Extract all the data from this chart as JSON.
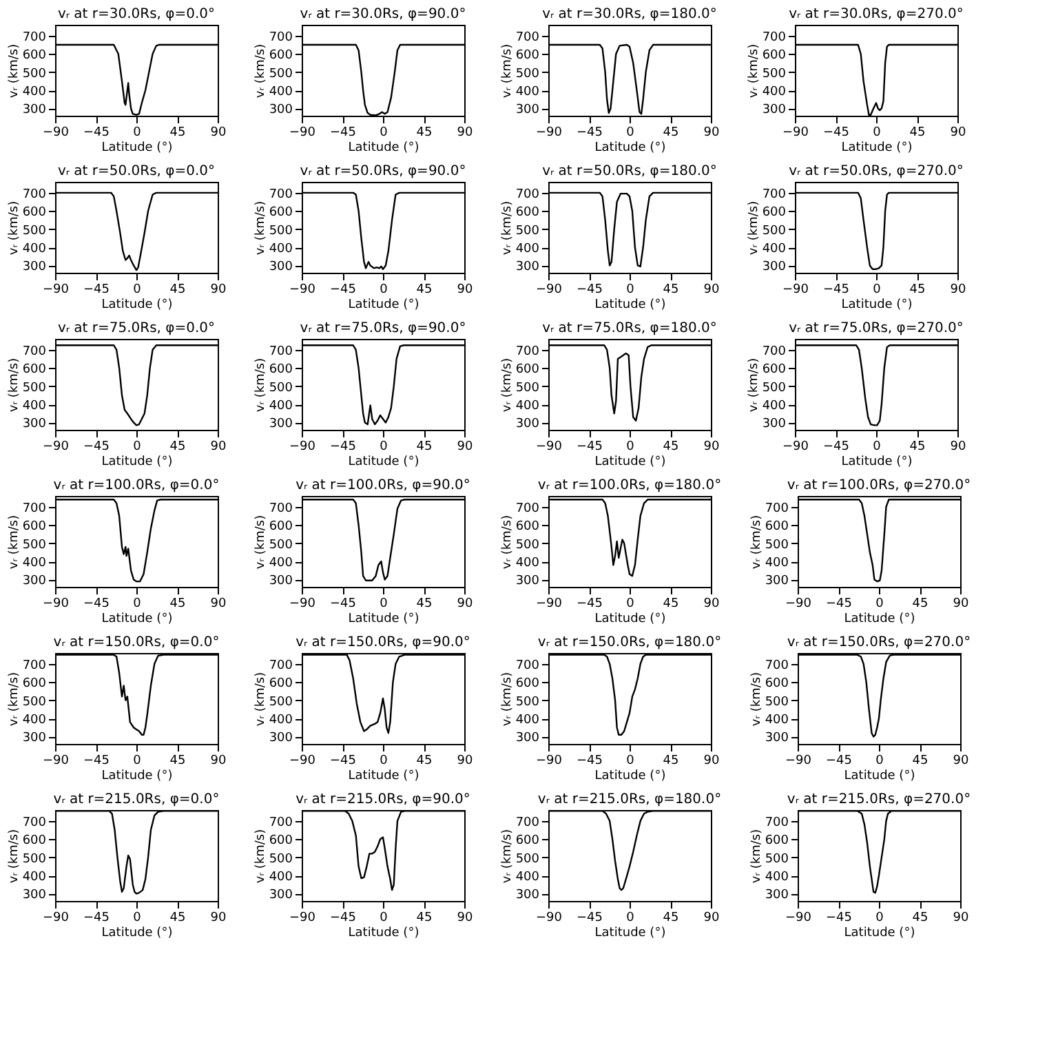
{
  "chart_data": [
    {
      "type": "line",
      "title": "vᵣ at r=30.0Rs, φ=0.0°",
      "xlabel": "Latitude (°)",
      "ylabel": "vᵣ (km/s)",
      "xlim": [
        -90,
        90
      ],
      "ylim": [
        260,
        760
      ],
      "xticks": [
        -90,
        -45,
        0,
        45,
        90
      ],
      "yticks": [
        300,
        400,
        500,
        600,
        700
      ],
      "x": [
        -90,
        -25,
        -20,
        -16,
        -13,
        -12,
        -10,
        -9,
        -8,
        -6,
        -4,
        0,
        3,
        6,
        10,
        14,
        18,
        22,
        25,
        90
      ],
      "series": [
        {
          "color": "#000000",
          "values": [
            650,
            650,
            600,
            450,
            330,
            320,
            400,
            440,
            380,
            300,
            270,
            265,
            270,
            330,
            400,
            500,
            600,
            645,
            650,
            650
          ]
        }
      ]
    },
    {
      "type": "line",
      "title": "vᵣ at r=30.0Rs, φ=90.0°",
      "xlabel": "Latitude (°)",
      "ylabel": "vᵣ (km/s)",
      "xlim": [
        -90,
        90
      ],
      "ylim": [
        260,
        760
      ],
      "xticks": [
        -90,
        -45,
        0,
        45,
        90
      ],
      "yticks": [
        300,
        400,
        500,
        600,
        700
      ],
      "x": [
        -90,
        -30,
        -27,
        -24,
        -22,
        -20,
        -17,
        -14,
        -8,
        -4,
        -1,
        2,
        5,
        9,
        13,
        16,
        19,
        90
      ],
      "series": [
        {
          "color": "#000000",
          "values": [
            650,
            650,
            620,
            500,
            400,
            320,
            275,
            265,
            262,
            270,
            280,
            270,
            280,
            360,
            500,
            620,
            650,
            650
          ]
        }
      ]
    },
    {
      "type": "line",
      "title": "vᵣ at r=30.0Rs, φ=180.0°",
      "xlabel": "Latitude (°)",
      "ylabel": "vᵣ (km/s)",
      "xlim": [
        -90,
        90
      ],
      "ylim": [
        260,
        760
      ],
      "xticks": [
        -90,
        -45,
        0,
        45,
        90
      ],
      "yticks": [
        300,
        400,
        500,
        600,
        700
      ],
      "x": [
        -90,
        -33,
        -30,
        -27,
        -25,
        -23,
        -21,
        -18,
        -15,
        -11,
        -3,
        0,
        4,
        8,
        11,
        13,
        15,
        18,
        22,
        26,
        90
      ],
      "series": [
        {
          "color": "#000000",
          "values": [
            650,
            650,
            630,
            500,
            350,
            275,
            300,
            450,
            600,
            645,
            650,
            640,
            550,
            400,
            280,
            270,
            350,
            500,
            620,
            650,
            650
          ]
        }
      ]
    },
    {
      "type": "line",
      "title": "vᵣ at r=30.0Rs, φ=270.0°",
      "xlabel": "Latitude (°)",
      "ylabel": "vᵣ (km/s)",
      "xlim": [
        -90,
        90
      ],
      "ylim": [
        260,
        760
      ],
      "xticks": [
        -90,
        -45,
        0,
        45,
        90
      ],
      "yticks": [
        300,
        400,
        500,
        600,
        700
      ],
      "x": [
        -90,
        -20,
        -17,
        -14,
        -10,
        -8,
        -6,
        -3,
        0,
        2,
        4,
        6,
        8,
        10,
        12,
        14,
        90
      ],
      "series": [
        {
          "color": "#000000",
          "values": [
            650,
            650,
            600,
            450,
            320,
            265,
            265,
            300,
            330,
            300,
            290,
            300,
            340,
            550,
            640,
            650,
            650
          ]
        }
      ]
    },
    {
      "type": "line",
      "title": "vᵣ at r=50.0Rs, φ=0.0°",
      "xlabel": "Latitude (°)",
      "ylabel": "vᵣ (km/s)",
      "xlim": [
        -90,
        90
      ],
      "ylim": [
        260,
        760
      ],
      "xticks": [
        -90,
        -45,
        0,
        45,
        90
      ],
      "yticks": [
        300,
        400,
        500,
        600,
        700
      ],
      "x": [
        -90,
        -28,
        -25,
        -22,
        -18,
        -15,
        -12,
        -10,
        -8,
        -6,
        -3,
        0,
        2,
        5,
        9,
        13,
        18,
        22,
        90
      ],
      "series": [
        {
          "color": "#000000",
          "values": [
            700,
            700,
            680,
            600,
            480,
            380,
            330,
            340,
            355,
            330,
            300,
            275,
            290,
            370,
            480,
            600,
            690,
            700,
            700
          ]
        }
      ]
    },
    {
      "type": "line",
      "title": "vᵣ at r=50.0Rs, φ=90.0°",
      "xlabel": "Latitude (°)",
      "ylabel": "vᵣ (km/s)",
      "xlim": [
        -90,
        90
      ],
      "ylim": [
        260,
        760
      ],
      "xticks": [
        -90,
        -45,
        0,
        45,
        90
      ],
      "yticks": [
        300,
        400,
        500,
        600,
        700
      ],
      "x": [
        -90,
        -33,
        -30,
        -27,
        -24,
        -21,
        -19,
        -16,
        -14,
        -10,
        -7,
        -4,
        -2,
        0,
        3,
        6,
        10,
        14,
        18,
        90
      ],
      "series": [
        {
          "color": "#000000",
          "values": [
            700,
            700,
            690,
            600,
            450,
            320,
            285,
            320,
            300,
            285,
            290,
            285,
            295,
            280,
            300,
            380,
            550,
            690,
            700,
            700
          ]
        }
      ]
    },
    {
      "type": "line",
      "title": "vᵣ at r=50.0Rs, φ=180.0°",
      "xlabel": "Latitude (°)",
      "ylabel": "vᵣ (km/s)",
      "xlim": [
        -90,
        90
      ],
      "ylim": [
        260,
        760
      ],
      "xticks": [
        -90,
        -45,
        0,
        45,
        90
      ],
      "yticks": [
        300,
        400,
        500,
        600,
        700
      ],
      "x": [
        -90,
        -33,
        -30,
        -27,
        -24,
        -22,
        -20,
        -17,
        -14,
        -10,
        -3,
        0,
        3,
        6,
        9,
        12,
        15,
        18,
        22,
        26,
        90
      ],
      "series": [
        {
          "color": "#000000",
          "values": [
            700,
            700,
            680,
            550,
            380,
            300,
            320,
            500,
            650,
            695,
            695,
            680,
            600,
            400,
            300,
            295,
            400,
            550,
            680,
            700,
            700
          ]
        }
      ]
    },
    {
      "type": "line",
      "title": "vᵣ at r=50.0Rs, φ=270.0°",
      "xlabel": "Latitude (°)",
      "ylabel": "vᵣ (km/s)",
      "xlim": [
        -90,
        90
      ],
      "ylim": [
        260,
        760
      ],
      "xticks": [
        -90,
        -45,
        0,
        45,
        90
      ],
      "yticks": [
        300,
        400,
        500,
        600,
        700
      ],
      "x": [
        -90,
        -20,
        -17,
        -14,
        -10,
        -7,
        -4,
        0,
        3,
        6,
        8,
        10,
        12,
        14,
        90
      ],
      "series": [
        {
          "color": "#000000",
          "values": [
            700,
            700,
            670,
            550,
            400,
            300,
            280,
            280,
            285,
            300,
            400,
            600,
            690,
            700,
            700
          ]
        }
      ]
    },
    {
      "type": "line",
      "title": "vᵣ at r=75.0Rs, φ=0.0°",
      "xlabel": "Latitude (°)",
      "ylabel": "vᵣ (km/s)",
      "xlim": [
        -90,
        90
      ],
      "ylim": [
        260,
        760
      ],
      "xticks": [
        -90,
        -45,
        0,
        45,
        90
      ],
      "yticks": [
        300,
        400,
        500,
        600,
        700
      ],
      "x": [
        -90,
        -25,
        -22,
        -19,
        -16,
        -13,
        -10,
        -6,
        -3,
        0,
        3,
        6,
        9,
        12,
        15,
        18,
        22,
        90
      ],
      "series": [
        {
          "color": "#000000",
          "values": [
            725,
            725,
            700,
            600,
            450,
            370,
            350,
            320,
            300,
            285,
            290,
            320,
            350,
            450,
            600,
            700,
            725,
            725
          ]
        }
      ]
    },
    {
      "type": "line",
      "title": "vᵣ at r=75.0Rs, φ=90.0°",
      "xlabel": "Latitude (°)",
      "ylabel": "vᵣ (km/s)",
      "xlim": [
        -90,
        90
      ],
      "ylim": [
        260,
        760
      ],
      "xticks": [
        -90,
        -45,
        0,
        45,
        90
      ],
      "yticks": [
        300,
        400,
        500,
        600,
        700
      ],
      "x": [
        -90,
        -33,
        -30,
        -27,
        -24,
        -22,
        -20,
        -17,
        -14,
        -12,
        -9,
        -6,
        -3,
        0,
        3,
        6,
        9,
        12,
        15,
        19,
        23,
        90
      ],
      "series": [
        {
          "color": "#000000",
          "values": [
            725,
            725,
            700,
            600,
            450,
            350,
            300,
            290,
            395,
            320,
            290,
            310,
            340,
            320,
            300,
            330,
            380,
            500,
            650,
            720,
            725,
            725
          ]
        }
      ]
    },
    {
      "type": "line",
      "title": "vᵣ at r=75.0Rs, φ=180.0°",
      "xlabel": "Latitude (°)",
      "ylabel": "vᵣ (km/s)",
      "xlim": [
        -90,
        90
      ],
      "ylim": [
        260,
        760
      ],
      "xticks": [
        -90,
        -45,
        0,
        45,
        90
      ],
      "yticks": [
        300,
        400,
        500,
        600,
        700
      ],
      "x": [
        -90,
        -28,
        -25,
        -22,
        -20,
        -17,
        -15,
        -13,
        -10,
        -7,
        -4,
        -1,
        1,
        4,
        7,
        10,
        13,
        16,
        20,
        24,
        90
      ],
      "series": [
        {
          "color": "#000000",
          "values": [
            725,
            725,
            700,
            600,
            450,
            350,
            420,
            650,
            660,
            670,
            680,
            670,
            500,
            330,
            310,
            380,
            550,
            650,
            715,
            725,
            725
          ]
        }
      ]
    },
    {
      "type": "line",
      "title": "vᵣ at r=75.0Rs, φ=270.0°",
      "xlabel": "Latitude (°)",
      "ylabel": "vᵣ (km/s)",
      "xlim": [
        -90,
        90
      ],
      "ylim": [
        260,
        760
      ],
      "xticks": [
        -90,
        -45,
        0,
        45,
        90
      ],
      "yticks": [
        300,
        400,
        500,
        600,
        700
      ],
      "x": [
        -90,
        -22,
        -19,
        -16,
        -12,
        -9,
        -6,
        -2,
        1,
        4,
        6,
        9,
        12,
        15,
        90
      ],
      "series": [
        {
          "color": "#000000",
          "values": [
            725,
            725,
            700,
            600,
            430,
            330,
            290,
            285,
            285,
            310,
            400,
            600,
            715,
            725,
            725
          ]
        }
      ]
    },
    {
      "type": "line",
      "title": "vᵣ at r=100.0Rs, φ=0.0°",
      "xlabel": "Latitude (°)",
      "ylabel": "vᵣ (km/s)",
      "xlim": [
        -90,
        90
      ],
      "ylim": [
        260,
        760
      ],
      "xticks": [
        -90,
        -45,
        0,
        45,
        90
      ],
      "yticks": [
        300,
        400,
        500,
        600,
        700
      ],
      "x": [
        -90,
        -25,
        -22,
        -19,
        -16,
        -14,
        -12,
        -11,
        -9,
        -6,
        -3,
        0,
        4,
        8,
        12,
        16,
        20,
        23,
        27,
        90
      ],
      "series": [
        {
          "color": "#000000",
          "values": [
            740,
            740,
            720,
            650,
            480,
            440,
            480,
            430,
            470,
            350,
            300,
            290,
            290,
            330,
            450,
            580,
            680,
            735,
            740,
            740
          ]
        }
      ]
    },
    {
      "type": "line",
      "title": "vᵣ at r=100.0Rs, φ=90.0°",
      "xlabel": "Latitude (°)",
      "ylabel": "vᵣ (km/s)",
      "xlim": [
        -90,
        90
      ],
      "ylim": [
        260,
        760
      ],
      "xticks": [
        -90,
        -45,
        0,
        45,
        90
      ],
      "yticks": [
        300,
        400,
        500,
        600,
        700
      ],
      "x": [
        -90,
        -33,
        -30,
        -27,
        -24,
        -22,
        -19,
        -12,
        -8,
        -5,
        -2,
        0,
        2,
        5,
        8,
        12,
        16,
        20,
        24,
        90
      ],
      "series": [
        {
          "color": "#000000",
          "values": [
            740,
            740,
            720,
            600,
            450,
            320,
            295,
            295,
            320,
            380,
            400,
            340,
            300,
            320,
            420,
            550,
            690,
            735,
            740,
            740
          ]
        }
      ]
    },
    {
      "type": "line",
      "title": "vᵣ at r=100.0Rs, φ=180.0°",
      "xlabel": "Latitude (°)",
      "ylabel": "vᵣ (km/s)",
      "xlim": [
        -90,
        90
      ],
      "ylim": [
        260,
        760
      ],
      "xticks": [
        -90,
        -45,
        0,
        45,
        90
      ],
      "yticks": [
        300,
        400,
        500,
        600,
        700
      ],
      "x": [
        -90,
        -30,
        -27,
        -24,
        -20,
        -18,
        -16,
        -14,
        -12,
        -10,
        -8,
        -6,
        -4,
        -2,
        0,
        3,
        6,
        9,
        12,
        16,
        20,
        90
      ],
      "series": [
        {
          "color": "#000000",
          "values": [
            740,
            740,
            720,
            650,
            480,
            380,
            430,
            510,
            420,
            470,
            520,
            500,
            440,
            380,
            330,
            320,
            380,
            520,
            650,
            720,
            740,
            740
          ]
        }
      ]
    },
    {
      "type": "line",
      "title": "vᵣ at r=100.0Rs, φ=270.0°",
      "xlabel": "Latitude (°)",
      "ylabel": "vᵣ (km/s)",
      "xlim": [
        -90,
        90
      ],
      "ylim": [
        260,
        760
      ],
      "xticks": [
        -90,
        -45,
        0,
        45,
        90
      ],
      "yticks": [
        300,
        400,
        500,
        600,
        700
      ],
      "x": [
        -90,
        -22,
        -19,
        -16,
        -13,
        -10,
        -7,
        -5,
        -2,
        1,
        3,
        6,
        8,
        11,
        90
      ],
      "series": [
        {
          "color": "#000000",
          "values": [
            740,
            740,
            720,
            650,
            550,
            450,
            380,
            300,
            290,
            295,
            350,
            550,
            700,
            740,
            740
          ]
        }
      ]
    },
    {
      "type": "line",
      "title": "vᵣ at r=150.0Rs, φ=0.0°",
      "xlabel": "Latitude (°)",
      "ylabel": "vᵣ (km/s)",
      "xlim": [
        -90,
        90
      ],
      "ylim": [
        260,
        760
      ],
      "xticks": [
        -90,
        -45,
        0,
        45,
        90
      ],
      "yticks": [
        300,
        400,
        500,
        600,
        700
      ],
      "x": [
        -90,
        -25,
        -22,
        -19,
        -16,
        -14,
        -12,
        -10,
        -7,
        -3,
        0,
        3,
        6,
        8,
        10,
        12,
        16,
        20,
        24,
        30,
        90
      ],
      "series": [
        {
          "color": "#000000",
          "values": [
            750,
            750,
            740,
            650,
            520,
            580,
            500,
            520,
            380,
            350,
            340,
            330,
            310,
            310,
            350,
            420,
            580,
            700,
            745,
            750,
            750
          ]
        }
      ]
    },
    {
      "type": "line",
      "title": "vᵣ at r=150.0Rs, φ=90.0°",
      "xlabel": "Latitude (°)",
      "ylabel": "vᵣ (km/s)",
      "xlim": [
        -90,
        90
      ],
      "ylim": [
        260,
        760
      ],
      "xticks": [
        -90,
        -45,
        0,
        45,
        90
      ],
      "yticks": [
        300,
        400,
        500,
        600,
        700
      ],
      "x": [
        -90,
        -40,
        -37,
        -33,
        -29,
        -25,
        -21,
        -18,
        -14,
        -9,
        -6,
        -3,
        0,
        2,
        4,
        6,
        8,
        11,
        14,
        18,
        24,
        90
      ],
      "series": [
        {
          "color": "#000000",
          "values": [
            750,
            750,
            720,
            620,
            480,
            380,
            330,
            340,
            360,
            370,
            380,
            430,
            510,
            450,
            350,
            320,
            380,
            600,
            700,
            740,
            750,
            750
          ]
        }
      ]
    },
    {
      "type": "line",
      "title": "vᵣ at r=150.0Rs, φ=180.0°",
      "xlabel": "Latitude (°)",
      "ylabel": "vᵣ (km/s)",
      "xlim": [
        -90,
        90
      ],
      "ylim": [
        260,
        760
      ],
      "xticks": [
        -90,
        -45,
        0,
        45,
        90
      ],
      "yticks": [
        300,
        400,
        500,
        600,
        700
      ],
      "x": [
        -90,
        -28,
        -25,
        -22,
        -19,
        -16,
        -14,
        -12,
        -9,
        -6,
        -3,
        0,
        3,
        6,
        9,
        12,
        15,
        18,
        90
      ],
      "series": [
        {
          "color": "#000000",
          "values": [
            750,
            750,
            740,
            700,
            620,
            500,
            350,
            310,
            310,
            330,
            380,
            430,
            520,
            560,
            620,
            700,
            740,
            750,
            750
          ]
        }
      ]
    },
    {
      "type": "line",
      "title": "vᵣ at r=150.0Rs, φ=270.0°",
      "xlabel": "Latitude (°)",
      "ylabel": "vᵣ (km/s)",
      "xlim": [
        -90,
        90
      ],
      "ylim": [
        260,
        760
      ],
      "xticks": [
        -90,
        -45,
        0,
        45,
        90
      ],
      "yticks": [
        300,
        400,
        500,
        600,
        700
      ],
      "x": [
        -90,
        -24,
        -20,
        -17,
        -14,
        -11,
        -8,
        -6,
        -4,
        -2,
        0,
        2,
        5,
        8,
        12,
        16,
        90
      ],
      "series": [
        {
          "color": "#000000",
          "values": [
            750,
            750,
            740,
            700,
            600,
            450,
            320,
            300,
            310,
            350,
            400,
            500,
            620,
            710,
            745,
            750,
            750
          ]
        }
      ]
    },
    {
      "type": "line",
      "title": "vᵣ at r=215.0Rs, φ=0.0°",
      "xlabel": "Latitude (°)",
      "ylabel": "vᵣ (km/s)",
      "xlim": [
        -90,
        90
      ],
      "ylim": [
        260,
        760
      ],
      "xticks": [
        -90,
        -45,
        0,
        45,
        90
      ],
      "yticks": [
        300,
        400,
        500,
        600,
        700
      ],
      "x": [
        -90,
        -30,
        -27,
        -24,
        -21,
        -18,
        -16,
        -14,
        -11,
        -9,
        -7,
        -4,
        -2,
        0,
        3,
        7,
        10,
        13,
        16,
        20,
        24,
        30,
        90
      ],
      "series": [
        {
          "color": "#000000",
          "values": [
            755,
            755,
            740,
            650,
            500,
            370,
            310,
            330,
            450,
            510,
            490,
            350,
            310,
            300,
            305,
            320,
            380,
            500,
            650,
            730,
            750,
            755,
            755
          ]
        }
      ]
    },
    {
      "type": "line",
      "title": "vᵣ at r=215.0Rs, φ=90.0°",
      "xlabel": "Latitude (°)",
      "ylabel": "vᵣ (km/s)",
      "xlim": [
        -90,
        90
      ],
      "ylim": [
        260,
        760
      ],
      "xticks": [
        -90,
        -45,
        0,
        45,
        90
      ],
      "yticks": [
        300,
        400,
        500,
        600,
        700
      ],
      "x": [
        -90,
        -42,
        -38,
        -34,
        -30,
        -27,
        -24,
        -21,
        -18,
        -15,
        -12,
        -9,
        -6,
        -3,
        0,
        2,
        5,
        8,
        10,
        12,
        14,
        16,
        20,
        24,
        90
      ],
      "series": [
        {
          "color": "#000000",
          "values": [
            755,
            755,
            740,
            700,
            620,
            450,
            385,
            390,
            450,
            520,
            520,
            530,
            560,
            600,
            610,
            550,
            450,
            380,
            320,
            350,
            550,
            700,
            750,
            755,
            755
          ]
        }
      ]
    },
    {
      "type": "line",
      "title": "vᵣ at r=215.0Rs, φ=180.0°",
      "xlabel": "Latitude (°)",
      "ylabel": "vᵣ (km/s)",
      "xlim": [
        -90,
        90
      ],
      "ylim": [
        260,
        760
      ],
      "xticks": [
        -90,
        -45,
        0,
        45,
        90
      ],
      "yticks": [
        300,
        400,
        500,
        600,
        700
      ],
      "x": [
        -90,
        -30,
        -26,
        -22,
        -19,
        -16,
        -13,
        -11,
        -9,
        -7,
        -4,
        0,
        4,
        8,
        12,
        16,
        20,
        26,
        90
      ],
      "series": [
        {
          "color": "#000000",
          "values": [
            755,
            755,
            740,
            700,
            600,
            480,
            380,
            330,
            320,
            330,
            380,
            450,
            530,
            620,
            700,
            740,
            750,
            755,
            755
          ]
        }
      ]
    },
    {
      "type": "line",
      "title": "vᵣ at r=215.0Rs, φ=270.0°",
      "xlabel": "Latitude (°)",
      "ylabel": "vᵣ (km/s)",
      "xlim": [
        -90,
        90
      ],
      "ylim": [
        260,
        760
      ],
      "xticks": [
        -90,
        -45,
        0,
        45,
        90
      ],
      "yticks": [
        300,
        400,
        500,
        600,
        700
      ],
      "x": [
        -90,
        -24,
        -19,
        -16,
        -13,
        -10,
        -8,
        -6,
        -4,
        -2,
        0,
        3,
        6,
        8,
        10,
        14,
        90
      ],
      "series": [
        {
          "color": "#000000",
          "values": [
            755,
            755,
            740,
            680,
            580,
            450,
            380,
            310,
            305,
            340,
            400,
            500,
            600,
            700,
            740,
            755,
            755
          ]
        }
      ]
    }
  ]
}
